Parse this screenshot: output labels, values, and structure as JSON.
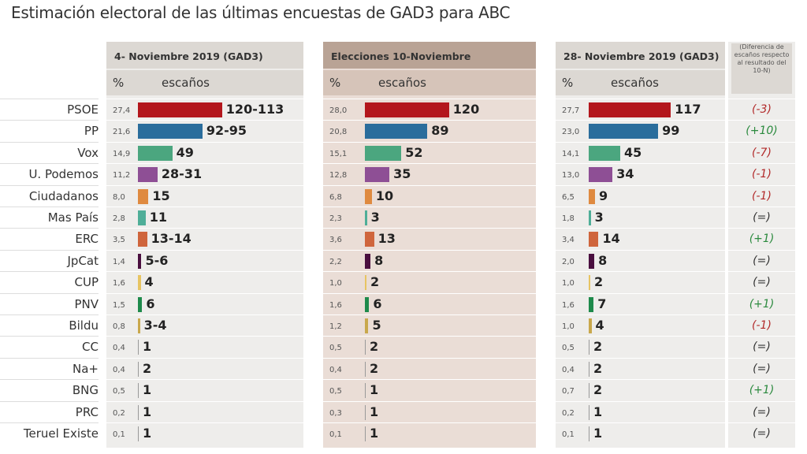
{
  "title": "Estimación electoral de las últimas encuestas de GAD3 para ABC",
  "chart_data": {
    "type": "bar",
    "title": "Estimación electoral de las últimas encuestas de GAD3 para ABC",
    "col_pct": "%",
    "col_seats": "escaños",
    "diff_header": "(Diferencia de escaños respecto al resultado del 10-N)",
    "categories": [
      "PSOE",
      "PP",
      "Vox",
      "U. Podemos",
      "Ciudadanos",
      "Mas País",
      "ERC",
      "JpCat",
      "CUP",
      "PNV",
      "Bildu",
      "CC",
      "Na+",
      "BNG",
      "PRC",
      "Teruel Existe"
    ],
    "colors": [
      "#b3161c",
      "#2a6d9c",
      "#4ba67f",
      "#8e4f95",
      "#df8a40",
      "#4fae98",
      "#cf653c",
      "#4a0f3f",
      "#e7c462",
      "#1e8a4b",
      "#c9a84c",
      "#9a9a9a",
      "#9a9a9a",
      "#9a9a9a",
      "#9a9a9a",
      "#9a9a9a"
    ],
    "series": [
      {
        "name": "4- Noviembre 2019 (GAD3)",
        "pct": [
          "27,4",
          "21,6",
          "14,9",
          "11,2",
          "8,0",
          "2,8",
          "3,5",
          "1,4",
          "1,6",
          "1,5",
          "0,8",
          "0,4",
          "0,4",
          "0,5",
          "0,2",
          "0,1"
        ],
        "seats_label": [
          "120-113",
          "92-95",
          "49",
          "28-31",
          "15",
          "11",
          "13-14",
          "5-6",
          "4",
          "6",
          "3-4",
          "1",
          "2",
          "1",
          "1",
          "1"
        ],
        "seats": [
          120,
          92,
          49,
          28,
          15,
          11,
          13,
          5,
          4,
          6,
          3,
          1,
          2,
          1,
          1,
          1
        ]
      },
      {
        "name": "Elecciones 10-Noviembre",
        "pct": [
          "28,0",
          "20,8",
          "15,1",
          "12,8",
          "6,8",
          "2,3",
          "3,6",
          "2,2",
          "1,0",
          "1,6",
          "1,2",
          "0,5",
          "0,4",
          "0,5",
          "0,3",
          "0,1"
        ],
        "seats_label": [
          "120",
          "89",
          "52",
          "35",
          "10",
          "3",
          "13",
          "8",
          "2",
          "6",
          "5",
          "2",
          "2",
          "1",
          "1",
          "1"
        ],
        "seats": [
          120,
          89,
          52,
          35,
          10,
          3,
          13,
          8,
          2,
          6,
          5,
          2,
          2,
          1,
          1,
          1
        ]
      },
      {
        "name": "28- Noviembre 2019 (GAD3)",
        "pct": [
          "27,7",
          "23,0",
          "14,1",
          "13,0",
          "6,5",
          "1,8",
          "3,4",
          "2,0",
          "1,0",
          "1,6",
          "1,0",
          "0,5",
          "0,4",
          "0,7",
          "0,2",
          "0,1"
        ],
        "seats_label": [
          "117",
          "99",
          "45",
          "34",
          "9",
          "3",
          "14",
          "8",
          "2",
          "7",
          "4",
          "2",
          "2",
          "2",
          "1",
          "1"
        ],
        "seats": [
          117,
          99,
          45,
          34,
          9,
          3,
          14,
          8,
          2,
          7,
          4,
          2,
          2,
          2,
          1,
          1
        ]
      }
    ],
    "diff": [
      "(-3)",
      "(+10)",
      "(-7)",
      "(-1)",
      "(-1)",
      "(=)",
      "(+1)",
      "(=)",
      "(=)",
      "(+1)",
      "(-1)",
      "(=)",
      "(=)",
      "(+1)",
      "(=)",
      "(=)"
    ],
    "diff_colors": {
      "neg": "#b22a2a",
      "pos": "#2b8a3e",
      "eq": "#333333"
    }
  }
}
